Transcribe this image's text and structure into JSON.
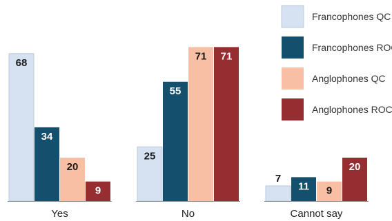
{
  "chart_data": {
    "type": "bar",
    "categories": [
      "Yes",
      "No",
      "Cannot say"
    ],
    "series": [
      {
        "name": "Francophones QC",
        "color": "#d6e2f1",
        "values": [
          68,
          25,
          7
        ]
      },
      {
        "name": "Francophones ROC",
        "color": "#14506e",
        "values": [
          34,
          55,
          11
        ]
      },
      {
        "name": "Anglophones QC",
        "color": "#f8bfa5",
        "values": [
          20,
          71,
          9
        ]
      },
      {
        "name": "Anglophones ROC",
        "color": "#962d31",
        "values": [
          9,
          71,
          20
        ]
      }
    ],
    "title": "",
    "xlabel": "",
    "ylabel": "",
    "ylim": [
      0,
      80
    ],
    "grid": false,
    "legend": "top-right"
  }
}
